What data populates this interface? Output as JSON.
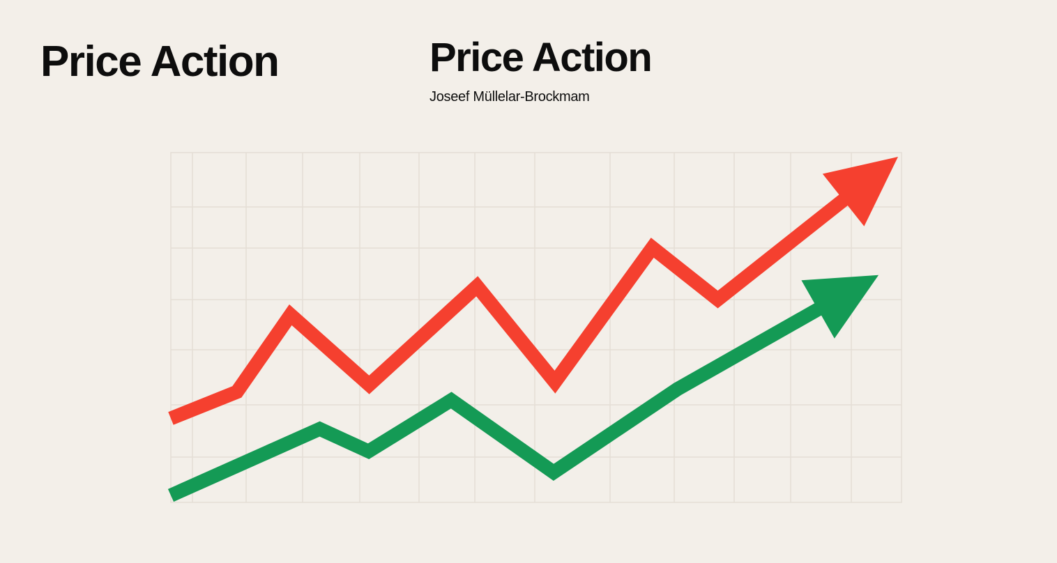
{
  "header": {
    "title_left": "Price Action",
    "title_right": "Price Action",
    "subtitle": "Joseef Müllelar-Brockmam"
  },
  "chart_data": {
    "type": "line",
    "title": "Price Action",
    "subtitle": "Joseef Müllelar-Brockmam",
    "xlabel": "",
    "ylabel": "",
    "grid": true,
    "legend": "none",
    "xlim": [
      0,
      1050
    ],
    "ylim": [
      0,
      500
    ],
    "series": [
      {
        "color": "#f5402f",
        "arrow_end": true,
        "points": [
          [
            0,
            120
          ],
          [
            95,
            158
          ],
          [
            172,
            268
          ],
          [
            285,
            168
          ],
          [
            440,
            309
          ],
          [
            552,
            172
          ],
          [
            692,
            364
          ],
          [
            786,
            290
          ],
          [
            1045,
            494
          ]
        ]
      },
      {
        "color": "#149a55",
        "arrow_end": true,
        "points": [
          [
            0,
            10
          ],
          [
            214,
            105
          ],
          [
            284,
            73
          ],
          [
            403,
            146
          ],
          [
            550,
            43
          ],
          [
            728,
            162
          ],
          [
            1017,
            325
          ]
        ]
      }
    ]
  }
}
